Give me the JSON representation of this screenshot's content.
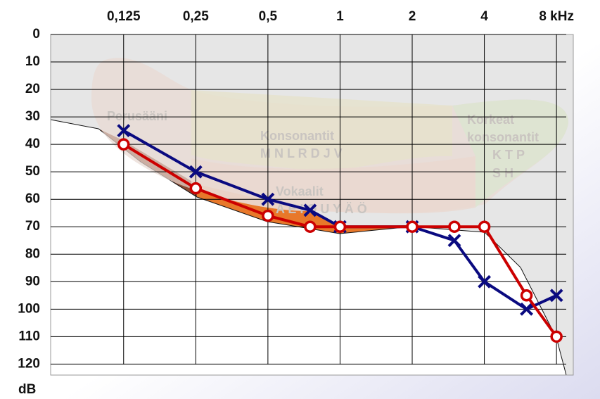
{
  "chart_data": {
    "type": "line",
    "xscale": "log",
    "yreverse": true,
    "grid": true,
    "xlim": [
      0.062,
      9.4
    ],
    "ylim": [
      0,
      124
    ],
    "xticks": [
      {
        "value": 0.125,
        "label": "0,125"
      },
      {
        "value": 0.25,
        "label": "0,25"
      },
      {
        "value": 0.5,
        "label": "0,5"
      },
      1,
      2,
      4,
      {
        "value": 8,
        "label": "8 kHz"
      }
    ],
    "yticks": [
      0,
      10,
      20,
      30,
      40,
      50,
      60,
      70,
      80,
      90,
      100,
      110,
      120
    ],
    "ylabel": "dB",
    "x": [
      0.125,
      0.25,
      0.5,
      0.75,
      1,
      2,
      3,
      4,
      6,
      8
    ],
    "series": [
      {
        "color": "#0a0a80",
        "marker": "x",
        "values": [
          35,
          50,
          60,
          64,
          70,
          70,
          75,
          90,
          100,
          95
        ]
      },
      {
        "color": "#cc0000",
        "marker": "o",
        "values": [
          40,
          56,
          66,
          70,
          70,
          70,
          70,
          70,
          95,
          110
        ]
      }
    ],
    "annotations": [
      "Perusääni",
      "Konsonantit",
      "M N L R D J V",
      "Korkeat",
      "konsonantit",
      "K T P",
      "S H",
      "Vokaalit",
      "A E I O U Y Ä Ö"
    ]
  }
}
